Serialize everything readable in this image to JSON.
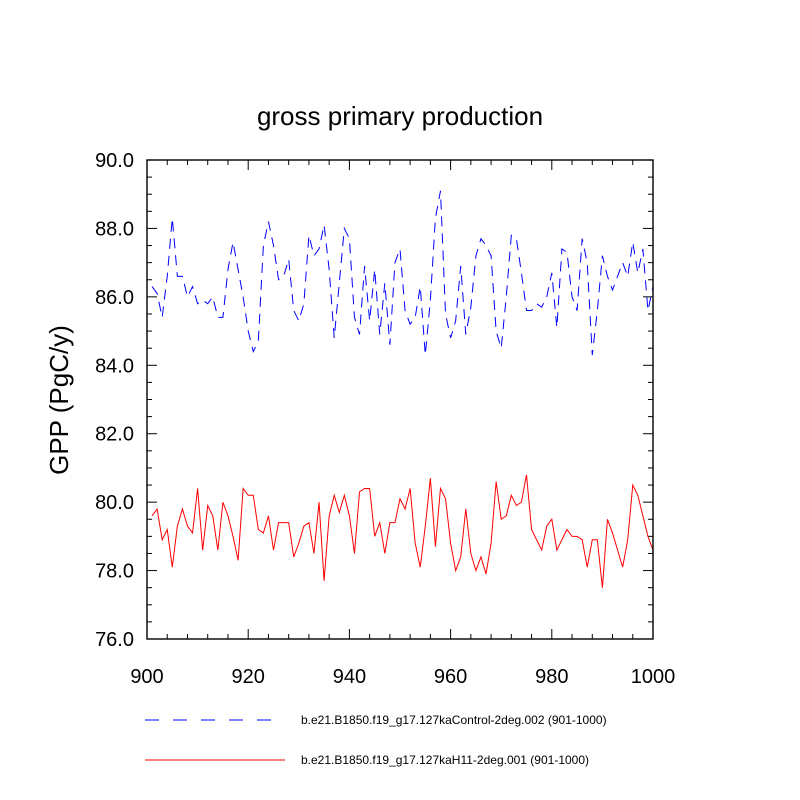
{
  "chart_data": {
    "type": "line",
    "title": "gross primary production",
    "xlabel": "",
    "ylabel": "GPP  (PgC/y)",
    "xlim": [
      900,
      1000
    ],
    "ylim": [
      76,
      90
    ],
    "x_ticks": [
      "900",
      "920",
      "940",
      "960",
      "980",
      "1000"
    ],
    "y_ticks": [
      "76.0",
      "78.0",
      "80.0",
      "82.0",
      "84.0",
      "86.0",
      "88.0",
      "90.0"
    ],
    "x_start": 901,
    "series": [
      {
        "name": "b.e21.B1850.f19_g17.127kaControl-2deg.002 (901-1000)",
        "color": "#0000ff",
        "dash": "dashed",
        "values": [
          86.3,
          86.1,
          85.4,
          86.6,
          88.3,
          86.6,
          86.6,
          86.0,
          86.3,
          85.8,
          85.9,
          85.8,
          86.0,
          85.4,
          85.4,
          86.8,
          87.6,
          86.8,
          86.0,
          85.0,
          84.4,
          84.7,
          87.5,
          88.2,
          87.5,
          86.5,
          86.6,
          87.1,
          85.6,
          85.3,
          85.8,
          87.8,
          87.2,
          87.4,
          88.1,
          86.8,
          84.8,
          86.4,
          88.0,
          87.7,
          85.4,
          84.9,
          86.9,
          85.3,
          86.8,
          84.9,
          86.4,
          84.6,
          87.0,
          87.4,
          85.6,
          85.2,
          85.4,
          86.3,
          84.3,
          85.9,
          88.3,
          89.1,
          85.5,
          84.8,
          85.3,
          86.9,
          84.9,
          85.7,
          87.2,
          87.7,
          87.5,
          87.2,
          85.0,
          84.5,
          86.0,
          87.8,
          87.7,
          86.7,
          85.6,
          85.6,
          85.8,
          85.7,
          86.0,
          86.7,
          85.1,
          87.4,
          87.3,
          86.0,
          85.6,
          87.7,
          87.0,
          84.3,
          85.6,
          87.2,
          86.6,
          86.2,
          86.6,
          87.0,
          86.6,
          87.6,
          86.7,
          87.4,
          85.6,
          86.3
        ]
      },
      {
        "name": "b.e21.B1850.f19_g17.127kaH11-2deg.001 (901-1000)",
        "color": "#ff0000",
        "dash": "solid",
        "values": [
          79.6,
          79.8,
          78.9,
          79.2,
          78.1,
          79.3,
          79.8,
          79.3,
          79.1,
          80.4,
          78.6,
          79.9,
          79.6,
          78.6,
          80.0,
          79.6,
          79.0,
          78.3,
          80.4,
          80.2,
          80.2,
          79.2,
          79.1,
          79.6,
          78.6,
          79.4,
          79.4,
          79.4,
          78.4,
          78.8,
          79.3,
          79.4,
          78.5,
          80.0,
          77.7,
          79.6,
          80.2,
          79.7,
          80.2,
          79.6,
          78.5,
          80.3,
          80.4,
          80.4,
          79.0,
          79.4,
          78.5,
          79.4,
          79.4,
          80.1,
          79.8,
          80.4,
          78.8,
          78.1,
          79.3,
          80.7,
          78.7,
          80.4,
          80.1,
          78.8,
          78.0,
          78.4,
          79.8,
          78.5,
          78.0,
          78.4,
          77.9,
          78.8,
          80.6,
          79.5,
          79.6,
          80.2,
          79.9,
          80.0,
          80.8,
          79.2,
          78.9,
          78.6,
          79.3,
          79.5,
          78.6,
          78.9,
          79.2,
          79.0,
          79.0,
          78.9,
          78.1,
          78.9,
          78.9,
          77.5,
          79.5,
          79.1,
          78.6,
          78.1,
          78.9,
          80.5,
          80.2,
          79.6,
          79.0,
          78.6
        ]
      }
    ],
    "legend_position": "bottom",
    "grid": false
  }
}
